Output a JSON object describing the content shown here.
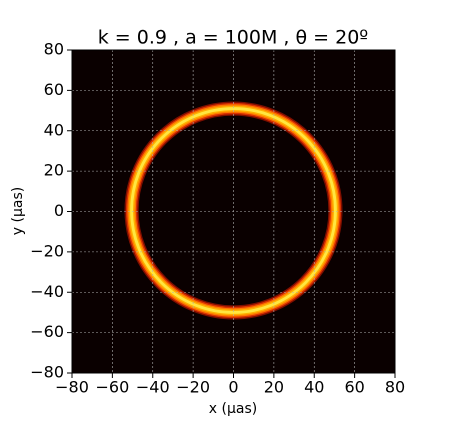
{
  "chart_data": {
    "type": "image",
    "title": "k = 0.9 , a = 100M ,  θ = 20º",
    "x_label": "x (μas)",
    "y_label": "y (μas)",
    "ring": {
      "center": [
        0,
        0.5
      ],
      "radius": 50.5,
      "width": 7
    },
    "xlim": [
      -80,
      80
    ],
    "ylim": [
      -80,
      80
    ],
    "xticks": [
      {
        "value": -80,
        "label": "−80"
      },
      {
        "value": -60,
        "label": "−60"
      },
      {
        "value": -40,
        "label": "−40"
      },
      {
        "value": -20,
        "label": "−20"
      },
      0,
      20,
      40,
      60,
      80
    ],
    "yticks": [
      {
        "value": -80,
        "label": "−80"
      },
      {
        "value": -60,
        "label": "−60"
      },
      {
        "value": -40,
        "label": "−40"
      },
      {
        "value": -20,
        "label": "−20"
      },
      0,
      20,
      40,
      60,
      80
    ],
    "grid": true
  }
}
